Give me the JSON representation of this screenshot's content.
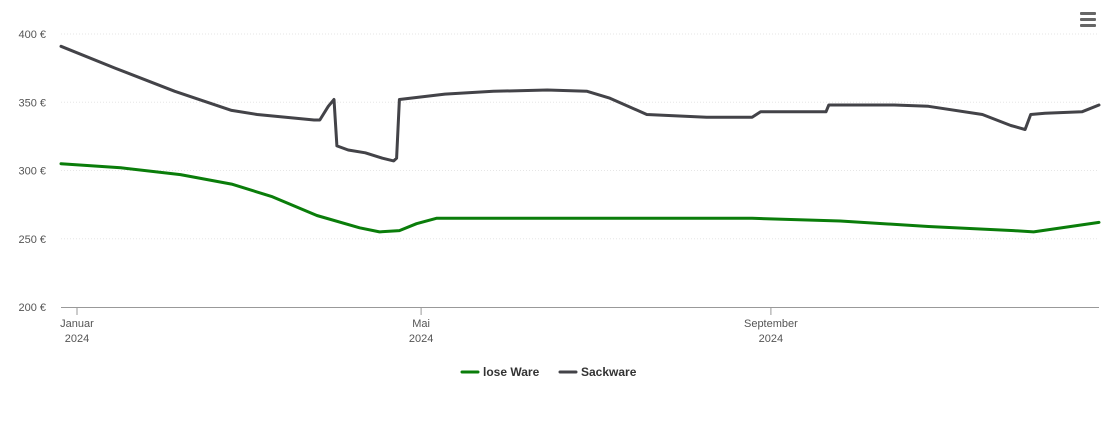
{
  "menu_icon": "hamburger-menu-icon",
  "chart_data": {
    "type": "line",
    "title": "",
    "xlabel": "",
    "ylabel": "",
    "ylim": [
      200,
      400
    ],
    "yticks": [
      200,
      250,
      300,
      350,
      400
    ],
    "ytick_suffix": " €",
    "xlim": [
      "2024-01-01",
      "2024-12-31"
    ],
    "xticks": [
      {
        "date": "2024-01-01",
        "line1": "Januar",
        "line2": "2024"
      },
      {
        "date": "2024-05-01",
        "line1": "Mai",
        "line2": "2024"
      },
      {
        "date": "2024-09-01",
        "line1": "September",
        "line2": "2024"
      }
    ],
    "grid": true,
    "legend_position": "bottom-center",
    "series": [
      {
        "name": "lose Ware",
        "color": "#0a7d0a",
        "points": [
          [
            "2024-01-01",
            305
          ],
          [
            "2024-01-22",
            302
          ],
          [
            "2024-02-12",
            297
          ],
          [
            "2024-03-01",
            290
          ],
          [
            "2024-03-15",
            281
          ],
          [
            "2024-03-31",
            267
          ],
          [
            "2024-04-15",
            258
          ],
          [
            "2024-04-22",
            255
          ],
          [
            "2024-04-29",
            256
          ],
          [
            "2024-05-05",
            261
          ],
          [
            "2024-05-12",
            265
          ],
          [
            "2024-06-15",
            265
          ],
          [
            "2024-07-20",
            265
          ],
          [
            "2024-08-31",
            265
          ],
          [
            "2024-10-01",
            263
          ],
          [
            "2024-11-01",
            259
          ],
          [
            "2024-12-01",
            256
          ],
          [
            "2024-12-08",
            255
          ],
          [
            "2024-12-31",
            262
          ]
        ]
      },
      {
        "name": "Sackware",
        "color": "#434348",
        "points": [
          [
            "2024-01-01",
            391
          ],
          [
            "2024-01-20",
            375
          ],
          [
            "2024-02-10",
            358
          ],
          [
            "2024-03-01",
            344
          ],
          [
            "2024-03-10",
            341
          ],
          [
            "2024-03-30",
            337
          ],
          [
            "2024-04-01",
            337
          ],
          [
            "2024-04-04",
            347
          ],
          [
            "2024-04-06",
            352
          ],
          [
            "2024-04-07",
            318
          ],
          [
            "2024-04-11",
            315
          ],
          [
            "2024-04-17",
            313
          ],
          [
            "2024-04-23",
            309
          ],
          [
            "2024-04-27",
            307
          ],
          [
            "2024-04-28",
            309
          ],
          [
            "2024-04-29",
            352
          ],
          [
            "2024-05-15",
            356
          ],
          [
            "2024-06-01",
            358
          ],
          [
            "2024-06-20",
            359
          ],
          [
            "2024-07-04",
            358
          ],
          [
            "2024-07-12",
            353
          ],
          [
            "2024-07-25",
            341
          ],
          [
            "2024-08-15",
            339
          ],
          [
            "2024-08-31",
            339
          ],
          [
            "2024-09-03",
            343
          ],
          [
            "2024-09-20",
            343
          ],
          [
            "2024-09-26",
            343
          ],
          [
            "2024-09-27",
            348
          ],
          [
            "2024-10-20",
            348
          ],
          [
            "2024-11-01",
            347
          ],
          [
            "2024-11-20",
            341
          ],
          [
            "2024-11-30",
            333
          ],
          [
            "2024-12-05",
            330
          ],
          [
            "2024-12-07",
            341
          ],
          [
            "2024-12-12",
            342
          ],
          [
            "2024-12-25",
            343
          ],
          [
            "2024-12-31",
            348
          ]
        ]
      }
    ]
  }
}
